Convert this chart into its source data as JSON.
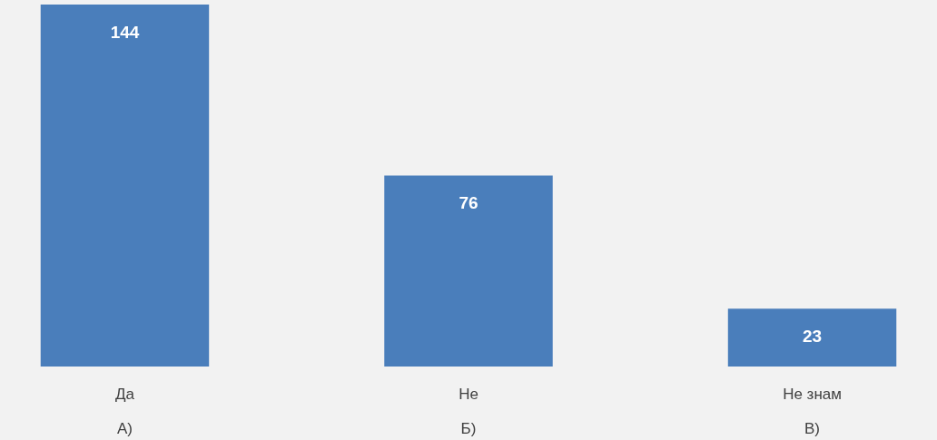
{
  "chart_data": {
    "type": "bar",
    "categories": [
      "Да\nА)",
      "Не\nБ)",
      "Не знам\nВ)"
    ],
    "values": [
      144,
      76,
      23
    ],
    "color": "#4a7ebb",
    "data_labels": true,
    "grid": false,
    "tick_labels": "x"
  }
}
